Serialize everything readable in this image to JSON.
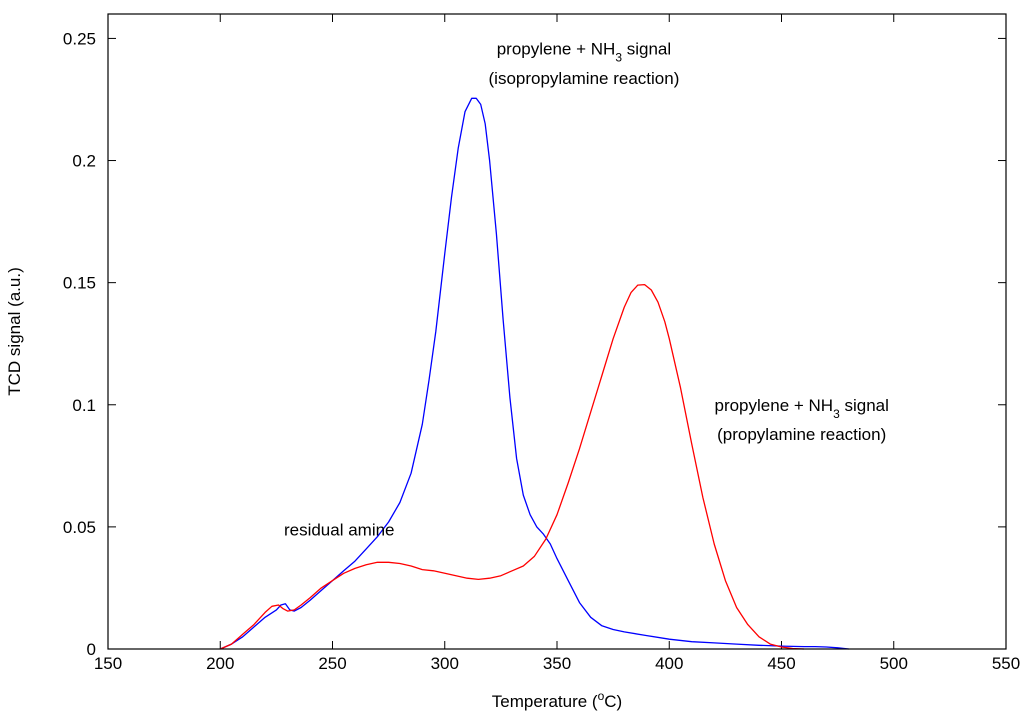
{
  "chart_data": {
    "type": "line",
    "title": "",
    "xlabel_main": "Temperature (",
    "xlabel_sup": "o",
    "xlabel_end": "C)",
    "ylabel": "TCD signal (a.u.)",
    "xlim": [
      150,
      550
    ],
    "ylim": [
      0,
      0.26
    ],
    "xticks": [
      150,
      200,
      250,
      300,
      350,
      400,
      450,
      500,
      550
    ],
    "yticks": [
      0,
      0.05,
      0.1,
      0.15,
      0.2,
      0.25
    ],
    "ytick_labels": [
      "0",
      "0.05",
      "0.1",
      "0.15",
      "0.2",
      "0.25"
    ],
    "grid": false,
    "series": [
      {
        "color": "#0000ff",
        "x": [
          200,
          205,
          210,
          215,
          220,
          225,
          227,
          229,
          231,
          233,
          236,
          240,
          245,
          250,
          255,
          260,
          265,
          270,
          275,
          280,
          285,
          290,
          293,
          296,
          300,
          303,
          306,
          309,
          312,
          314,
          316,
          318,
          320,
          323,
          326,
          329,
          332,
          335,
          338,
          341,
          344,
          347,
          350,
          355,
          360,
          365,
          370,
          375,
          380,
          390,
          400,
          410,
          420,
          430,
          440,
          450,
          460,
          465,
          470,
          475,
          480
        ],
        "y": [
          0,
          0.002,
          0.005,
          0.009,
          0.013,
          0.016,
          0.018,
          0.0185,
          0.016,
          0.0155,
          0.017,
          0.02,
          0.024,
          0.028,
          0.032,
          0.036,
          0.041,
          0.046,
          0.052,
          0.06,
          0.072,
          0.092,
          0.11,
          0.13,
          0.162,
          0.185,
          0.205,
          0.22,
          0.2255,
          0.2255,
          0.223,
          0.215,
          0.2,
          0.17,
          0.135,
          0.103,
          0.078,
          0.063,
          0.055,
          0.05,
          0.047,
          0.043,
          0.037,
          0.028,
          0.019,
          0.013,
          0.0095,
          0.008,
          0.007,
          0.0055,
          0.004,
          0.003,
          0.0025,
          0.002,
          0.0015,
          0.0012,
          0.001,
          0.001,
          0.0008,
          0.0005,
          0
        ]
      },
      {
        "color": "#ff0000",
        "x": [
          200,
          205,
          210,
          215,
          220,
          223,
          226,
          228,
          230,
          233,
          236,
          240,
          245,
          250,
          255,
          260,
          265,
          270,
          275,
          280,
          285,
          290,
          295,
          300,
          305,
          310,
          315,
          320,
          325,
          330,
          335,
          340,
          345,
          350,
          355,
          360,
          365,
          370,
          375,
          380,
          383,
          386,
          389,
          392,
          395,
          398,
          400,
          405,
          410,
          415,
          420,
          425,
          430,
          435,
          440,
          445,
          450,
          455,
          460
        ],
        "y": [
          0,
          0.002,
          0.006,
          0.01,
          0.015,
          0.0175,
          0.018,
          0.0165,
          0.0155,
          0.016,
          0.018,
          0.021,
          0.025,
          0.028,
          0.031,
          0.033,
          0.0345,
          0.0355,
          0.0355,
          0.035,
          0.034,
          0.0325,
          0.032,
          0.031,
          0.03,
          0.029,
          0.0285,
          0.029,
          0.03,
          0.032,
          0.034,
          0.038,
          0.045,
          0.055,
          0.068,
          0.082,
          0.097,
          0.112,
          0.127,
          0.14,
          0.146,
          0.149,
          0.1492,
          0.147,
          0.142,
          0.134,
          0.127,
          0.107,
          0.084,
          0.062,
          0.043,
          0.028,
          0.017,
          0.01,
          0.005,
          0.002,
          0.0008,
          0.0002,
          0
        ]
      }
    ],
    "annotations": [
      {
        "text": "propylene + NH",
        "sub": "3",
        "tail": " signal",
        "x": 362,
        "y": 0.2434
      },
      {
        "text": "(isopropylamine reaction)",
        "x": 362,
        "y": 0.2314
      },
      {
        "text": "propylene + NH",
        "sub": "3",
        "tail": " signal",
        "x": 459,
        "y": 0.0974
      },
      {
        "text": "(propylamine reaction)",
        "x": 459,
        "y": 0.0856
      },
      {
        "text": "residual amine",
        "x": 253,
        "y": 0.0464
      }
    ]
  }
}
